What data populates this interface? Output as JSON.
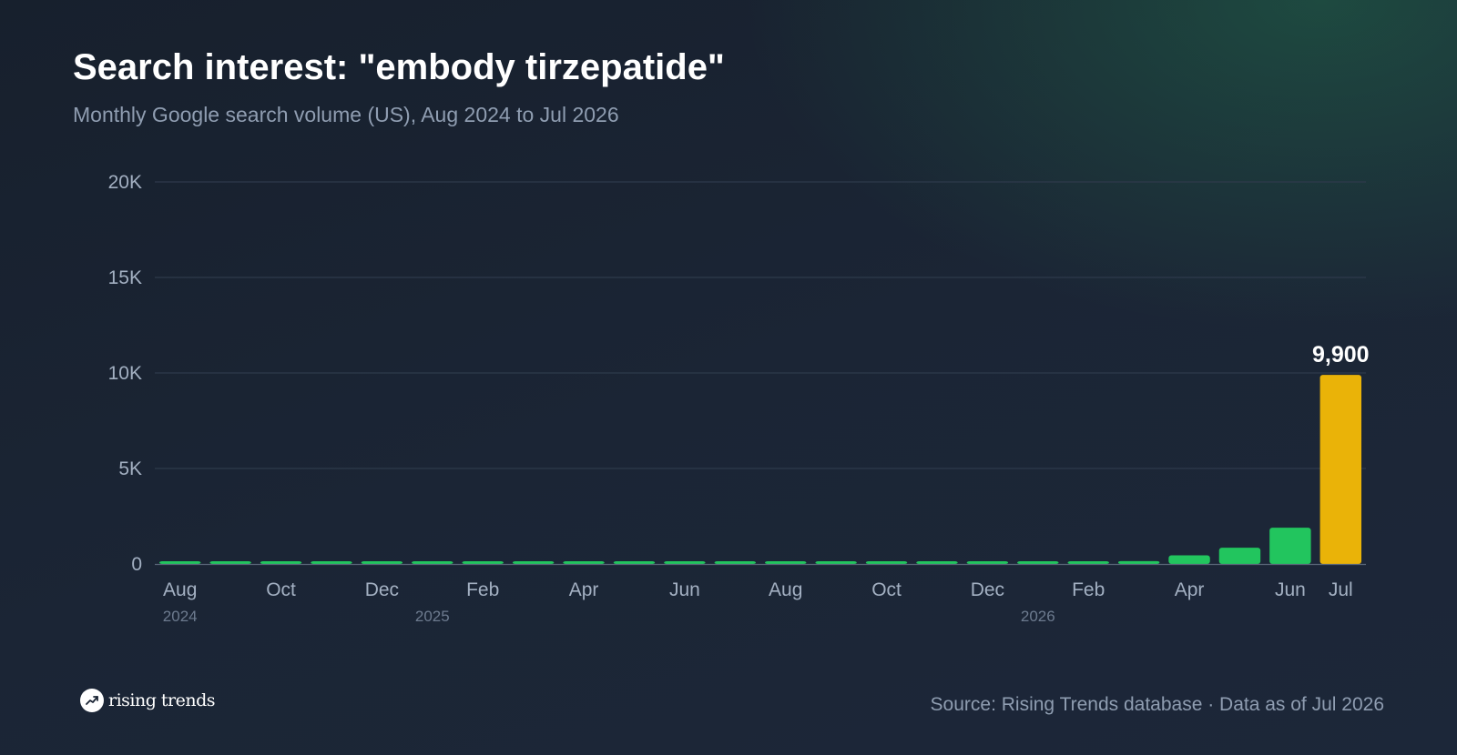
{
  "header": {
    "title": "Search interest: \"embody tirzepatide\"",
    "subtitle": "Monthly Google search volume (US), Aug 2024 to Jul 2026"
  },
  "footer": {
    "brand": "rising trends",
    "brand_icon": "trending-up-icon",
    "source": "Source: Rising Trends database · Data as of Jul 2026"
  },
  "colors": {
    "bar": "#22c55e",
    "highlight": "#eab308",
    "grid": "#2e3a4b",
    "baseline": "#5a6678"
  },
  "chart_data": {
    "type": "bar",
    "categories": [
      "Aug 2024",
      "Sep 2024",
      "Oct 2024",
      "Nov 2024",
      "Dec 2024",
      "Jan 2025",
      "Feb 2025",
      "Mar 2025",
      "Apr 2025",
      "May 2025",
      "Jun 2025",
      "Jul 2025",
      "Aug 2025",
      "Sep 2025",
      "Oct 2025",
      "Nov 2025",
      "Dec 2025",
      "Jan 2026",
      "Feb 2026",
      "Mar 2026",
      "Apr 2026",
      "May 2026",
      "Jun 2026",
      "Jul 2026"
    ],
    "values": [
      100,
      100,
      100,
      100,
      100,
      100,
      100,
      100,
      100,
      100,
      100,
      100,
      100,
      100,
      100,
      100,
      100,
      100,
      100,
      150,
      450,
      850,
      1900,
      9900
    ],
    "highlight_index": 23,
    "ylim": [
      0,
      20000
    ],
    "yticks": [
      {
        "value": 0,
        "label": "0"
      },
      {
        "value": 5000,
        "label": "5K"
      },
      {
        "value": 10000,
        "label": "10K"
      },
      {
        "value": 15000,
        "label": "15K"
      },
      {
        "value": 20000,
        "label": "20K"
      }
    ],
    "xticks": [
      {
        "index": 0,
        "label": "Aug"
      },
      {
        "index": 2,
        "label": "Oct"
      },
      {
        "index": 4,
        "label": "Dec"
      },
      {
        "index": 6,
        "label": "Feb"
      },
      {
        "index": 8,
        "label": "Apr"
      },
      {
        "index": 10,
        "label": "Jun"
      },
      {
        "index": 12,
        "label": "Aug"
      },
      {
        "index": 14,
        "label": "Oct"
      },
      {
        "index": 16,
        "label": "Dec"
      },
      {
        "index": 18,
        "label": "Feb"
      },
      {
        "index": 20,
        "label": "Apr"
      },
      {
        "index": 22,
        "label": "Jun"
      },
      {
        "index": 23,
        "label": "Jul"
      }
    ],
    "year_labels": [
      {
        "index": 0,
        "label": "2024"
      },
      {
        "index": 5,
        "label": "2025"
      },
      {
        "index": 17,
        "label": "2026"
      }
    ],
    "annotations": [
      {
        "index": 23,
        "label": "9,900"
      }
    ],
    "grid": true
  }
}
